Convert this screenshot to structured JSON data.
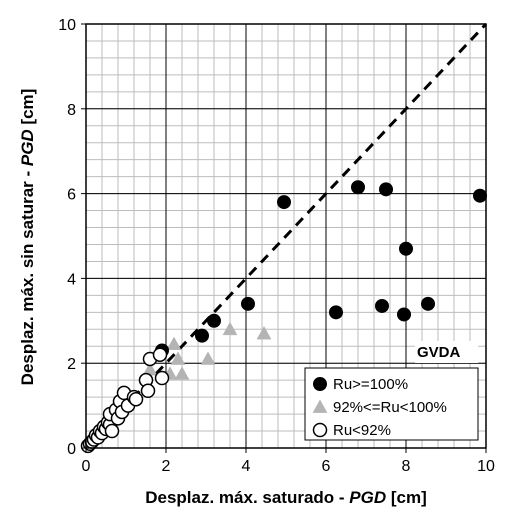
{
  "chart_data": {
    "type": "scatter",
    "title": "",
    "xlabel_plain": "Desplaz. máx. saturado - ",
    "xlabel_italic": "PGD",
    "xlabel_unit": " [cm]",
    "ylabel_plain": "Desplaz. máx. sin saturar - ",
    "ylabel_italic": "PGD",
    "ylabel_unit": " [cm]",
    "xlim": [
      0,
      10
    ],
    "ylim": [
      0,
      10
    ],
    "xticks": [
      0,
      2,
      4,
      6,
      8,
      10
    ],
    "yticks": [
      0,
      2,
      4,
      6,
      8,
      10
    ],
    "minor_grid_step": 0.4,
    "major_grid_step": 2,
    "grid": true,
    "annotation": "GVDA",
    "legend_position": "bottom-right",
    "reference_line": {
      "style": "dashed",
      "from": [
        0,
        0
      ],
      "to": [
        10,
        10
      ]
    },
    "series": [
      {
        "name": "Ru>=100%",
        "marker": "filled-circle",
        "color": "#000000",
        "points": [
          [
            1.9,
            2.3
          ],
          [
            2.9,
            2.65
          ],
          [
            3.2,
            3.0
          ],
          [
            4.05,
            3.4
          ],
          [
            4.95,
            5.8
          ],
          [
            6.25,
            3.2
          ],
          [
            6.8,
            6.15
          ],
          [
            7.4,
            3.35
          ],
          [
            7.5,
            6.1
          ],
          [
            7.95,
            3.15
          ],
          [
            8.0,
            4.7
          ],
          [
            8.55,
            3.4
          ],
          [
            9.85,
            5.95
          ]
        ]
      },
      {
        "name": "92%<=Ru<100%",
        "marker": "triangle",
        "color": "#b4b4b4",
        "points": [
          [
            1.6,
            1.85
          ],
          [
            1.85,
            2.2
          ],
          [
            2.1,
            1.75
          ],
          [
            2.2,
            2.45
          ],
          [
            2.3,
            2.1
          ],
          [
            2.4,
            1.75
          ],
          [
            3.05,
            2.1
          ],
          [
            3.6,
            2.8
          ],
          [
            4.45,
            2.7
          ]
        ]
      },
      {
        "name": "Ru<92%",
        "marker": "open-circle",
        "color": "#000000",
        "points": [
          [
            0.05,
            0.05
          ],
          [
            0.1,
            0.1
          ],
          [
            0.15,
            0.15
          ],
          [
            0.2,
            0.2
          ],
          [
            0.25,
            0.3
          ],
          [
            0.3,
            0.25
          ],
          [
            0.35,
            0.4
          ],
          [
            0.4,
            0.35
          ],
          [
            0.45,
            0.5
          ],
          [
            0.5,
            0.45
          ],
          [
            0.55,
            0.6
          ],
          [
            0.6,
            0.55
          ],
          [
            0.6,
            0.8
          ],
          [
            0.65,
            0.4
          ],
          [
            0.75,
            0.9
          ],
          [
            0.8,
            0.7
          ],
          [
            0.85,
            1.1
          ],
          [
            0.9,
            0.85
          ],
          [
            0.95,
            1.3
          ],
          [
            1.05,
            1.0
          ],
          [
            1.2,
            1.2
          ],
          [
            1.25,
            1.15
          ],
          [
            1.5,
            1.6
          ],
          [
            1.55,
            1.35
          ],
          [
            1.6,
            2.1
          ],
          [
            1.9,
            1.65
          ],
          [
            1.85,
            2.2
          ]
        ]
      }
    ]
  }
}
